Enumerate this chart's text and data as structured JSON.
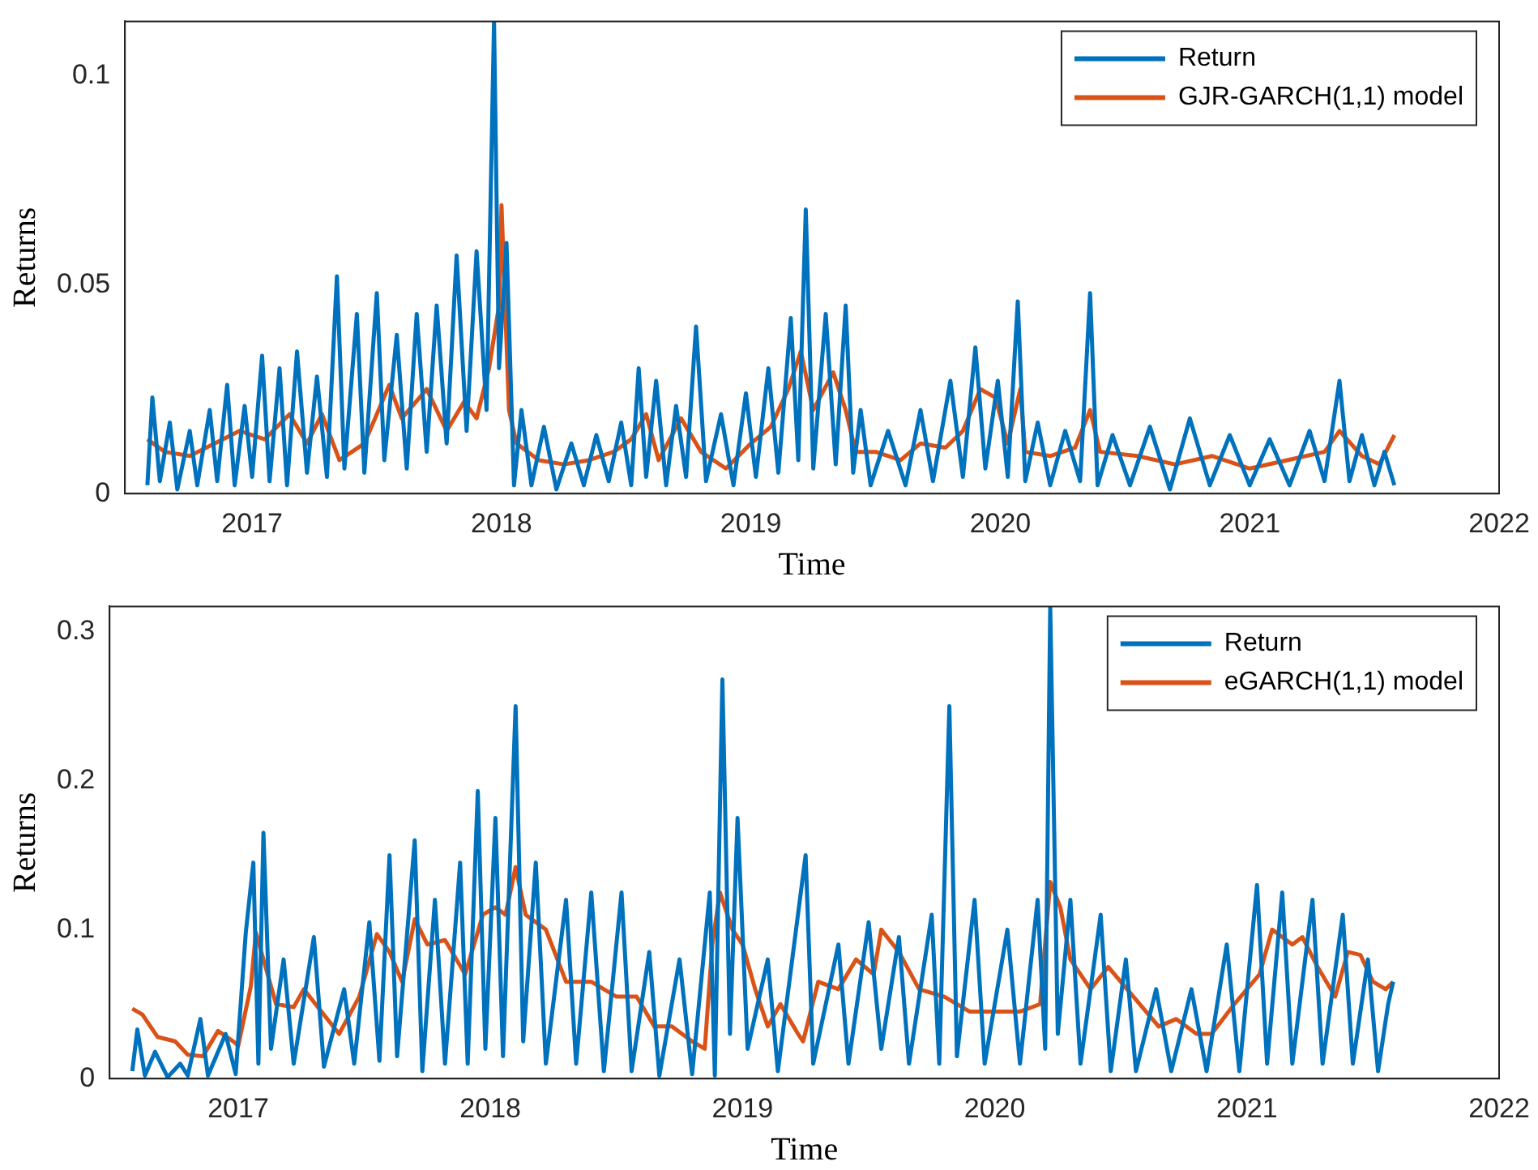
{
  "chart_data": [
    {
      "type": "line",
      "xlabel": "Time",
      "ylabel": "Returns",
      "xlim": [
        2016.49,
        2022
      ],
      "xticks": [
        2017,
        2018,
        2019,
        2020,
        2021,
        2022
      ],
      "ylim": [
        0,
        0.113
      ],
      "yticks": [
        0,
        0.05,
        0.1
      ],
      "grid": false,
      "legend": "top right",
      "series": [
        {
          "name": "Return",
          "color": "#0072bd",
          "x": [
            2016.58,
            2016.6,
            2016.63,
            2016.67,
            2016.7,
            2016.75,
            2016.78,
            2016.83,
            2016.86,
            2016.9,
            2016.93,
            2016.97,
            2017.0,
            2017.04,
            2017.07,
            2017.11,
            2017.14,
            2017.18,
            2017.22,
            2017.26,
            2017.3,
            2017.34,
            2017.37,
            2017.42,
            2017.45,
            2017.5,
            2017.53,
            2017.58,
            2017.62,
            2017.66,
            2017.7,
            2017.74,
            2017.78,
            2017.82,
            2017.86,
            2017.9,
            2017.94,
            2017.97,
            2017.99,
            2018.02,
            2018.05,
            2018.08,
            2018.12,
            2018.17,
            2018.22,
            2018.28,
            2018.33,
            2018.38,
            2018.43,
            2018.48,
            2018.52,
            2018.55,
            2018.58,
            2018.62,
            2018.66,
            2018.7,
            2018.74,
            2018.78,
            2018.82,
            2018.88,
            2018.93,
            2018.98,
            2019.02,
            2019.07,
            2019.11,
            2019.16,
            2019.19,
            2019.22,
            2019.25,
            2019.3,
            2019.34,
            2019.38,
            2019.41,
            2019.44,
            2019.48,
            2019.55,
            2019.62,
            2019.68,
            2019.73,
            2019.8,
            2019.85,
            2019.9,
            2019.94,
            2019.99,
            2020.03,
            2020.07,
            2020.1,
            2020.15,
            2020.2,
            2020.26,
            2020.32,
            2020.36,
            2020.39,
            2020.45,
            2020.52,
            2020.6,
            2020.68,
            2020.76,
            2020.84,
            2020.92,
            2021.0,
            2021.08,
            2021.16,
            2021.24,
            2021.3,
            2021.36,
            2021.4,
            2021.45,
            2021.5,
            2021.54,
            2021.58
          ],
          "values": [
            0.002,
            0.023,
            0.003,
            0.017,
            0.001,
            0.015,
            0.002,
            0.02,
            0.003,
            0.026,
            0.002,
            0.021,
            0.004,
            0.033,
            0.003,
            0.03,
            0.002,
            0.034,
            0.005,
            0.028,
            0.004,
            0.052,
            0.006,
            0.043,
            0.005,
            0.048,
            0.008,
            0.038,
            0.006,
            0.043,
            0.01,
            0.045,
            0.012,
            0.057,
            0.015,
            0.058,
            0.02,
            0.113,
            0.03,
            0.06,
            0.002,
            0.02,
            0.002,
            0.016,
            0.001,
            0.012,
            0.002,
            0.014,
            0.003,
            0.017,
            0.002,
            0.03,
            0.004,
            0.027,
            0.002,
            0.021,
            0.004,
            0.04,
            0.003,
            0.019,
            0.002,
            0.024,
            0.004,
            0.03,
            0.005,
            0.042,
            0.008,
            0.068,
            0.006,
            0.043,
            0.007,
            0.045,
            0.005,
            0.02,
            0.002,
            0.015,
            0.002,
            0.02,
            0.003,
            0.027,
            0.004,
            0.035,
            0.006,
            0.027,
            0.004,
            0.046,
            0.003,
            0.017,
            0.002,
            0.015,
            0.003,
            0.048,
            0.002,
            0.014,
            0.002,
            0.016,
            0.001,
            0.018,
            0.002,
            0.014,
            0.002,
            0.013,
            0.002,
            0.015,
            0.003,
            0.027,
            0.003,
            0.014,
            0.002,
            0.01,
            0.002
          ]
        },
        {
          "name": "GJR-GARCH(1,1) model",
          "color": "#d95319",
          "x": [
            2016.58,
            2016.65,
            2016.75,
            2016.85,
            2016.95,
            2017.05,
            2017.15,
            2017.22,
            2017.28,
            2017.35,
            2017.45,
            2017.55,
            2017.6,
            2017.7,
            2017.78,
            2017.85,
            2017.9,
            2017.95,
            2017.99,
            2018.0,
            2018.03,
            2018.06,
            2018.15,
            2018.25,
            2018.35,
            2018.45,
            2018.52,
            2018.58,
            2018.63,
            2018.72,
            2018.8,
            2018.9,
            2019.0,
            2019.08,
            2019.15,
            2019.2,
            2019.25,
            2019.33,
            2019.38,
            2019.42,
            2019.5,
            2019.6,
            2019.68,
            2019.78,
            2019.85,
            2019.92,
            2019.98,
            2020.03,
            2020.08,
            2020.1,
            2020.2,
            2020.3,
            2020.36,
            2020.4,
            2020.55,
            2020.7,
            2020.85,
            2021.0,
            2021.15,
            2021.3,
            2021.36,
            2021.45,
            2021.52,
            2021.58
          ],
          "values": [
            0.013,
            0.01,
            0.009,
            0.012,
            0.015,
            0.013,
            0.019,
            0.012,
            0.019,
            0.008,
            0.012,
            0.026,
            0.018,
            0.025,
            0.015,
            0.022,
            0.018,
            0.03,
            0.045,
            0.069,
            0.02,
            0.012,
            0.008,
            0.007,
            0.008,
            0.01,
            0.013,
            0.019,
            0.008,
            0.018,
            0.01,
            0.006,
            0.012,
            0.016,
            0.025,
            0.034,
            0.02,
            0.029,
            0.02,
            0.01,
            0.01,
            0.008,
            0.012,
            0.011,
            0.015,
            0.025,
            0.023,
            0.012,
            0.025,
            0.01,
            0.009,
            0.011,
            0.02,
            0.01,
            0.009,
            0.007,
            0.009,
            0.006,
            0.008,
            0.01,
            0.015,
            0.009,
            0.007,
            0.014
          ]
        }
      ]
    },
    {
      "type": "line",
      "xlabel": "Time",
      "ylabel": "Returns",
      "xlim": [
        2016.49,
        2022
      ],
      "xticks": [
        2017,
        2018,
        2019,
        2020,
        2021,
        2022
      ],
      "ylim": [
        0,
        0.317
      ],
      "yticks": [
        0,
        0.1,
        0.2,
        0.3
      ],
      "grid": false,
      "legend": "top right",
      "series": [
        {
          "name": "Return",
          "color": "#0072bd",
          "x": [
            2016.58,
            2016.6,
            2016.63,
            2016.67,
            2016.72,
            2016.77,
            2016.8,
            2016.85,
            2016.88,
            2016.95,
            2016.99,
            2017.03,
            2017.06,
            2017.08,
            2017.1,
            2017.13,
            2017.18,
            2017.22,
            2017.3,
            2017.34,
            2017.42,
            2017.46,
            2017.52,
            2017.56,
            2017.6,
            2017.63,
            2017.7,
            2017.73,
            2017.78,
            2017.82,
            2017.88,
            2017.91,
            2017.95,
            2017.98,
            2018.02,
            2018.05,
            2018.1,
            2018.13,
            2018.18,
            2018.22,
            2018.3,
            2018.34,
            2018.4,
            2018.45,
            2018.52,
            2018.56,
            2018.63,
            2018.67,
            2018.75,
            2018.8,
            2018.87,
            2018.89,
            2018.92,
            2018.95,
            2018.98,
            2019.02,
            2019.1,
            2019.14,
            2019.25,
            2019.28,
            2019.38,
            2019.42,
            2019.5,
            2019.55,
            2019.62,
            2019.66,
            2019.75,
            2019.78,
            2019.82,
            2019.85,
            2019.92,
            2019.96,
            2020.05,
            2020.1,
            2020.17,
            2020.2,
            2020.22,
            2020.25,
            2020.3,
            2020.34,
            2020.42,
            2020.46,
            2020.52,
            2020.56,
            2020.64,
            2020.7,
            2020.78,
            2020.84,
            2020.92,
            2020.97,
            2021.04,
            2021.08,
            2021.14,
            2021.18,
            2021.26,
            2021.3,
            2021.38,
            2021.42,
            2021.48,
            2021.52,
            2021.56,
            2021.58
          ],
          "values": [
            0.005,
            0.033,
            0.002,
            0.018,
            0.001,
            0.01,
            0.002,
            0.04,
            0.002,
            0.03,
            0.003,
            0.098,
            0.145,
            0.01,
            0.165,
            0.02,
            0.08,
            0.01,
            0.095,
            0.008,
            0.06,
            0.01,
            0.105,
            0.012,
            0.15,
            0.015,
            0.16,
            0.005,
            0.12,
            0.01,
            0.145,
            0.01,
            0.193,
            0.02,
            0.175,
            0.015,
            0.25,
            0.025,
            0.145,
            0.01,
            0.12,
            0.01,
            0.125,
            0.005,
            0.125,
            0.005,
            0.085,
            0.002,
            0.08,
            0.003,
            0.125,
            0.002,
            0.268,
            0.03,
            0.175,
            0.02,
            0.08,
            0.005,
            0.15,
            0.01,
            0.09,
            0.01,
            0.105,
            0.02,
            0.095,
            0.01,
            0.11,
            0.01,
            0.25,
            0.015,
            0.12,
            0.01,
            0.1,
            0.01,
            0.12,
            0.02,
            0.317,
            0.03,
            0.12,
            0.01,
            0.11,
            0.005,
            0.08,
            0.005,
            0.06,
            0.005,
            0.06,
            0.005,
            0.09,
            0.005,
            0.13,
            0.01,
            0.125,
            0.01,
            0.12,
            0.01,
            0.11,
            0.01,
            0.08,
            0.005,
            0.05,
            0.065
          ]
        },
        {
          "name": "eGARCH(1,1) model",
          "color": "#d95319",
          "x": [
            2016.58,
            2016.62,
            2016.68,
            2016.75,
            2016.8,
            2016.86,
            2016.92,
            2016.98,
            2017.0,
            2017.05,
            2017.07,
            2017.1,
            2017.15,
            2017.22,
            2017.26,
            2017.33,
            2017.4,
            2017.48,
            2017.55,
            2017.6,
            2017.65,
            2017.7,
            2017.75,
            2017.82,
            2017.9,
            2017.97,
            2018.02,
            2018.06,
            2018.1,
            2018.14,
            2018.22,
            2018.3,
            2018.4,
            2018.5,
            2018.58,
            2018.65,
            2018.72,
            2018.8,
            2018.85,
            2018.88,
            2018.91,
            2018.96,
            2019.0,
            2019.05,
            2019.1,
            2019.15,
            2019.22,
            2019.24,
            2019.3,
            2019.38,
            2019.45,
            2019.52,
            2019.55,
            2019.62,
            2019.7,
            2019.8,
            2019.9,
            2020.0,
            2020.1,
            2020.18,
            2020.22,
            2020.26,
            2020.3,
            2020.38,
            2020.45,
            2020.55,
            2020.65,
            2020.72,
            2020.8,
            2020.86,
            2020.95,
            2021.0,
            2021.05,
            2021.1,
            2021.18,
            2021.22,
            2021.28,
            2021.35,
            2021.4,
            2021.45,
            2021.5,
            2021.55,
            2021.58
          ],
          "values": [
            0.047,
            0.043,
            0.028,
            0.025,
            0.016,
            0.015,
            0.032,
            0.025,
            0.022,
            0.062,
            0.098,
            0.08,
            0.05,
            0.048,
            0.06,
            0.045,
            0.03,
            0.055,
            0.097,
            0.085,
            0.065,
            0.107,
            0.09,
            0.093,
            0.07,
            0.11,
            0.115,
            0.11,
            0.142,
            0.11,
            0.1,
            0.065,
            0.065,
            0.055,
            0.055,
            0.035,
            0.035,
            0.025,
            0.02,
            0.09,
            0.125,
            0.1,
            0.09,
            0.06,
            0.035,
            0.05,
            0.03,
            0.025,
            0.065,
            0.06,
            0.08,
            0.07,
            0.1,
            0.085,
            0.06,
            0.055,
            0.045,
            0.045,
            0.045,
            0.05,
            0.132,
            0.115,
            0.08,
            0.06,
            0.075,
            0.055,
            0.035,
            0.04,
            0.03,
            0.03,
            0.05,
            0.06,
            0.07,
            0.1,
            0.09,
            0.095,
            0.075,
            0.055,
            0.085,
            0.083,
            0.065,
            0.06,
            0.065
          ]
        }
      ]
    }
  ]
}
